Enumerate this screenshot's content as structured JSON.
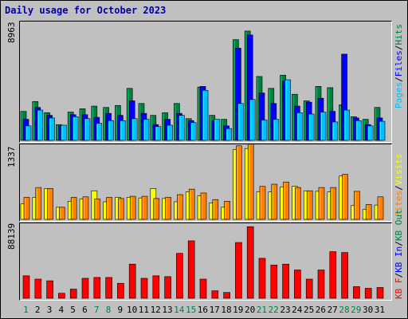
{
  "chart_data": {
    "title": "Daily usage for October 2023",
    "type": "bar",
    "x": [
      "1",
      "2",
      "3",
      "4",
      "5",
      "6",
      "7",
      "8",
      "9",
      "10",
      "11",
      "12",
      "13",
      "14",
      "15",
      "16",
      "17",
      "18",
      "19",
      "20",
      "21",
      "22",
      "23",
      "24",
      "25",
      "26",
      "27",
      "28",
      "29",
      "30",
      "31"
    ],
    "weekend_days": [
      "1",
      "7",
      "8",
      "14",
      "15",
      "21",
      "22",
      "28",
      "29"
    ],
    "panels": [
      {
        "max_label": "8963",
        "ymax": 8963,
        "legend": [
          {
            "text": "Hits",
            "color": "#008040"
          },
          {
            "text": "Files",
            "color": "#0000ff"
          },
          {
            "text": "Pages",
            "color": "#00c0ff"
          }
        ],
        "series": [
          {
            "name": "Hits",
            "color": "#008040",
            "values": [
              2200,
              2950,
              2100,
              1200,
              2150,
              2400,
              2600,
              2500,
              2650,
              3950,
              2800,
              1900,
              2100,
              2800,
              1650,
              4050,
              1900,
              1600,
              7650,
              8300,
              4850,
              3950,
              4950,
              3500,
              3000,
              4100,
              4000,
              2700,
              1800,
              1600,
              2500
            ]
          },
          {
            "name": "Files",
            "color": "#0000ff",
            "values": [
              1600,
              2500,
              1900,
              1100,
              1950,
              1950,
              1750,
              2050,
              1900,
              3000,
              2050,
              1200,
              1600,
              2050,
              1500,
              4100,
              1500,
              1100,
              7000,
              8000,
              3600,
              2800,
              4500,
              2600,
              2900,
              3200,
              2200,
              6550,
              1700,
              1200,
              1700
            ]
          },
          {
            "name": "Pages",
            "color": "#00c0ff",
            "values": [
              1100,
              2300,
              1700,
              1150,
              1800,
              1650,
              1300,
              1500,
              1500,
              1650,
              1600,
              1050,
              1150,
              1900,
              1350,
              3800,
              1600,
              900,
              2800,
              3100,
              1550,
              1600,
              4600,
              2100,
              2000,
              2150,
              1400,
              2300,
              1500,
              1100,
              1450
            ]
          }
        ]
      },
      {
        "max_label": "1337",
        "ymax": 1337,
        "legend": [
          {
            "text": "Visits",
            "color": "#ffff00"
          },
          {
            "text": "Sites",
            "color": "#ff8000"
          }
        ],
        "series": [
          {
            "name": "Visits",
            "color": "#ffff00",
            "values": [
              280,
              400,
              560,
              220,
              330,
              370,
              520,
              320,
              400,
              400,
              390,
              560,
              380,
              320,
              500,
              430,
              300,
              220,
              1270,
              1290,
              500,
              500,
              590,
              600,
              520,
              510,
              500,
              790,
              250,
              180,
              260
            ]
          },
          {
            "name": "Sites",
            "color": "#ff8000",
            "values": [
              400,
              580,
              560,
              220,
              400,
              410,
              370,
              400,
              380,
              420,
              420,
              380,
              400,
              450,
              550,
              480,
              360,
              330,
              1340,
              1370,
              600,
              640,
              680,
              580,
              520,
              580,
              580,
              820,
              510,
              270,
              410
            ]
          }
        ]
      },
      {
        "max_label": "88139",
        "ymax": 88139,
        "legend": [
          {
            "text": "KB F",
            "color": "#ff0000"
          },
          {
            "text": "KB In",
            "color": "#0000ff"
          },
          {
            "text": "KB Out",
            "color": "#008040"
          }
        ],
        "series": [
          {
            "name": "KB F",
            "color": "#ff0000",
            "values": [
              27000,
              23000,
              21000,
              6000,
              11000,
              24000,
              25000,
              25000,
              18000,
              41000,
              24000,
              27000,
              26000,
              54000,
              69000,
              23000,
              9000,
              7000,
              67000,
              86000,
              48000,
              40000,
              41000,
              34000,
              23000,
              34000,
              56000,
              55000,
              14000,
              12000,
              13000
            ]
          }
        ]
      }
    ]
  }
}
